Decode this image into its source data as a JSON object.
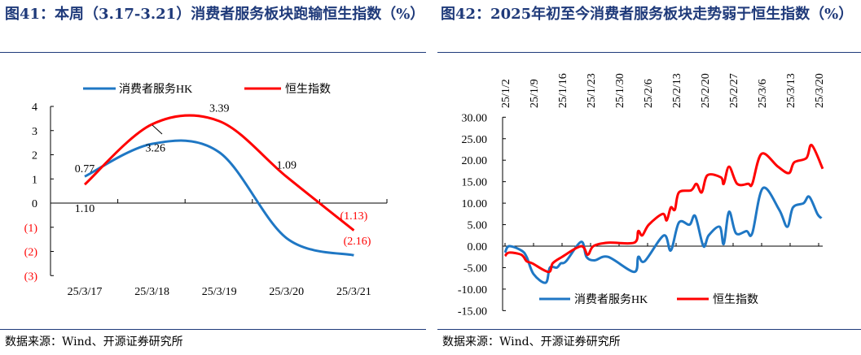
{
  "left": {
    "title": "图41：本周（3.17-3.21）消费者服务板块跑输恒生指数（%）",
    "source": "数据来源：Wind、开源证券研究所"
  },
  "right": {
    "title": "图42：2025年初至今消费者服务板块走势弱于恒生指数（%）",
    "source": "数据来源：Wind、开源证券研究所"
  },
  "colors": {
    "blue": "#1f77c4",
    "red": "#ff0000"
  },
  "chart_data": [
    {
      "type": "line",
      "categories": [
        "25/3/17",
        "25/3/18",
        "25/3/19",
        "25/3/20",
        "25/3/21"
      ],
      "ylim": [
        -3,
        4
      ],
      "yticks": [
        {
          "v": 4,
          "t": "4"
        },
        {
          "v": 3,
          "t": "3"
        },
        {
          "v": 2,
          "t": "2"
        },
        {
          "v": 1,
          "t": "1"
        },
        {
          "v": 0,
          "t": "0"
        },
        {
          "v": -1,
          "t": "(1)"
        },
        {
          "v": -2,
          "t": "(2)"
        },
        {
          "v": -3,
          "t": "(3)"
        }
      ],
      "legend": "top",
      "series": [
        {
          "name": "消费者服务HK",
          "values": [
            1.1,
            2.45,
            2.1,
            -1.45,
            -2.16
          ]
        },
        {
          "name": "恒生指数",
          "values": [
            0.77,
            3.26,
            3.39,
            1.09,
            -1.13
          ]
        }
      ],
      "labels": [
        {
          "t": "0.77",
          "i": 0,
          "v": 1.45
        },
        {
          "t": "1.10",
          "i": 0,
          "v": -0.2
        },
        {
          "t": "3.26",
          "i": 1.05,
          "v": 2.3
        },
        {
          "t": "3.39",
          "i": 2,
          "v": 3.95
        },
        {
          "t": "1.09",
          "i": 3,
          "v": 1.6
        },
        {
          "t": "(1.13)",
          "i": 4,
          "v": -0.5,
          "red": true
        },
        {
          "t": "(2.16)",
          "i": 4.05,
          "v": -1.55,
          "red": true
        }
      ]
    },
    {
      "type": "line",
      "xlabels": [
        "25/1/2",
        "25/1/9",
        "25/1/16",
        "25/1/23",
        "25/1/30",
        "25/2/6",
        "25/2/13",
        "25/2/20",
        "25/2/27",
        "25/3/6",
        "25/3/13",
        "25/3/20"
      ],
      "x_unit": "days since 25/1/2",
      "ylim": [
        -15,
        30
      ],
      "yticks": [
        "30.00",
        "25.00",
        "20.00",
        "15.00",
        "10.00",
        "5.00",
        "0.00",
        "-5.00",
        "-10.00",
        "-15.00"
      ],
      "legend": "bottom",
      "series": [
        {
          "name": "消费者服务HK",
          "points": [
            [
              0,
              -1.5
            ],
            [
              1,
              0
            ],
            [
              4,
              -1
            ],
            [
              5.3,
              -2.5
            ],
            [
              7,
              -6.5
            ],
            [
              10,
              -8.5
            ],
            [
              11,
              -5
            ],
            [
              12.7,
              -5
            ],
            [
              13.7,
              -4
            ],
            [
              15,
              -3.5
            ],
            [
              18.7,
              1
            ],
            [
              20,
              -2.5
            ],
            [
              22,
              -3.3
            ],
            [
              25.3,
              -2.5
            ],
            [
              31.7,
              -6
            ],
            [
              32.7,
              -2.5
            ],
            [
              34.3,
              -3.5
            ],
            [
              39,
              2.5
            ],
            [
              40.7,
              -1
            ],
            [
              42.7,
              5.5
            ],
            [
              45.3,
              5
            ],
            [
              46.7,
              7
            ],
            [
              48.7,
              0
            ],
            [
              50,
              2.5
            ],
            [
              52.7,
              4.5
            ],
            [
              53.7,
              0.5
            ],
            [
              55,
              8
            ],
            [
              56.7,
              3
            ],
            [
              59.3,
              3.5
            ],
            [
              60.7,
              3
            ],
            [
              63.3,
              13.5
            ],
            [
              67.3,
              8.5
            ],
            [
              69.3,
              4.5
            ],
            [
              70.7,
              9
            ],
            [
              73.3,
              10
            ],
            [
              74.7,
              11.5
            ],
            [
              76.7,
              7.5
            ],
            [
              77.7,
              6.5
            ]
          ]
        },
        {
          "name": "恒生指数",
          "points": [
            [
              0,
              -2.3
            ],
            [
              1,
              -1.5
            ],
            [
              4,
              -2
            ],
            [
              5.3,
              -3.5
            ],
            [
              6.7,
              -4
            ],
            [
              10.7,
              -6
            ],
            [
              11.7,
              -4
            ],
            [
              14,
              -2.5
            ],
            [
              18.7,
              0
            ],
            [
              20.3,
              -2
            ],
            [
              21.7,
              0
            ],
            [
              25.3,
              0.8
            ],
            [
              31.7,
              0.8
            ],
            [
              32.7,
              3.5
            ],
            [
              33.7,
              2.5
            ],
            [
              35.3,
              5
            ],
            [
              38.7,
              7.5
            ],
            [
              39.7,
              6
            ],
            [
              40.7,
              9
            ],
            [
              41.7,
              8.5
            ],
            [
              42.7,
              12.5
            ],
            [
              45.7,
              13
            ],
            [
              47,
              14.5
            ],
            [
              48.3,
              12.5
            ],
            [
              49.7,
              16.5
            ],
            [
              53,
              16
            ],
            [
              53.7,
              14.5
            ],
            [
              55,
              18.5
            ],
            [
              57,
              14.5
            ],
            [
              59.7,
              14.5
            ],
            [
              60.7,
              14.5
            ],
            [
              63,
              21.5
            ],
            [
              67,
              18.5
            ],
            [
              69.7,
              17
            ],
            [
              71,
              19.5
            ],
            [
              74,
              20.5
            ],
            [
              75.3,
              23.5
            ],
            [
              78,
              18
            ]
          ]
        }
      ]
    }
  ]
}
